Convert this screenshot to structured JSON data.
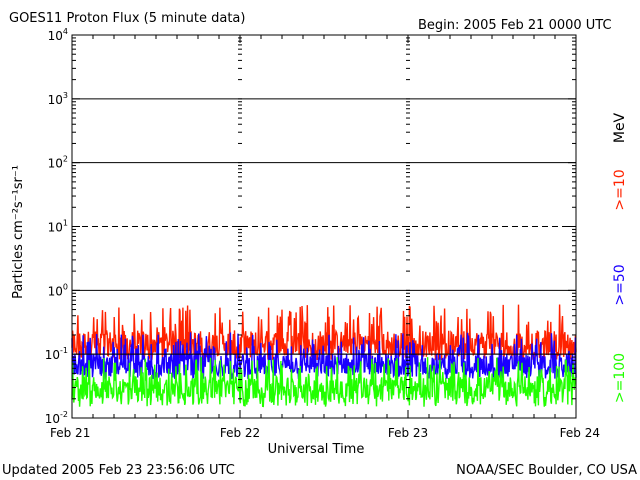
{
  "header": {
    "title": "GOES11 Proton Flux (5 minute data)",
    "begin": "Begin: 2005 Feb 21 0000 UTC"
  },
  "footer": {
    "updated": "Updated 2005 Feb 23 23:56:06 UTC",
    "credit": "NOAA/SEC Boulder, CO USA"
  },
  "colors": {
    "ge10": "#ff2200",
    "ge50": "#1a00ff",
    "ge100": "#22ff00",
    "frame": "#000000"
  },
  "chart_data": {
    "type": "line",
    "title": "GOES11 Proton Flux (5 minute data)",
    "xlabel": "Universal Time",
    "ylabel": "Particles cm⁻²s⁻¹sr⁻¹",
    "yscale": "log",
    "ylim": [
      0.01,
      10000
    ],
    "y_ticks": [
      {
        "base": "10",
        "exp": "4",
        "value": 10000
      },
      {
        "base": "10",
        "exp": "3",
        "value": 1000
      },
      {
        "base": "10",
        "exp": "2",
        "value": 100
      },
      {
        "base": "10",
        "exp": "1",
        "value": 10
      },
      {
        "base": "10",
        "exp": "0",
        "value": 1
      },
      {
        "base": "10",
        "exp": "-1",
        "value": 0.1
      },
      {
        "base": "10",
        "exp": "-2",
        "value": 0.01
      }
    ],
    "x_ticks": [
      "Feb 21",
      "Feb 22",
      "Feb 23",
      "Feb 24"
    ],
    "xlim": [
      "2005-02-21",
      "2005-02-24"
    ],
    "threshold_dashed_y": 10,
    "threshold_solid_y": 0.1,
    "unit_label": "MeV",
    "series": [
      {
        "name": ">=10",
        "color": "#ff2200",
        "typical_value": 0.15,
        "range": [
          0.08,
          0.6
        ]
      },
      {
        "name": ">=50",
        "color": "#1a00ff",
        "typical_value": 0.07,
        "range": [
          0.04,
          0.22
        ]
      },
      {
        "name": ">=100",
        "color": "#22ff00",
        "typical_value": 0.03,
        "range": [
          0.015,
          0.09
        ]
      }
    ]
  }
}
